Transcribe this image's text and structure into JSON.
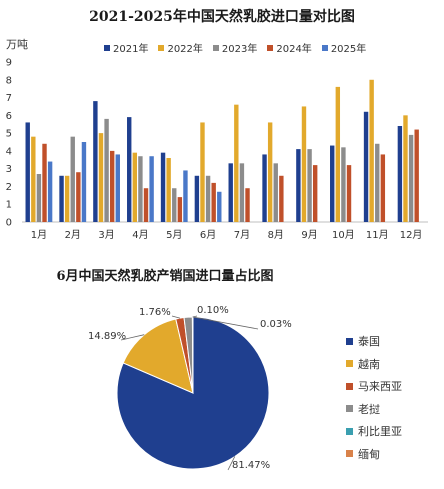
{
  "bar_title": "2021-2025年中国天然乳胶进口量对比图",
  "bar_unit": "万吨",
  "pie_title": "6月中国天然乳胶产销国进口量占比图",
  "chart_data": [
    {
      "type": "bar",
      "title": "2021-2025年中国天然乳胶进口量对比图",
      "ylabel": "万吨",
      "ylim": [
        0,
        9
      ],
      "yticks": [
        0,
        1,
        2,
        3,
        4,
        5,
        6,
        7,
        8,
        9
      ],
      "grid": false,
      "legend": "top",
      "categories": [
        "1月",
        "2月",
        "3月",
        "4月",
        "5月",
        "6月",
        "7月",
        "8月",
        "9月",
        "10月",
        "11月",
        "12月"
      ],
      "series": [
        {
          "name": "2021年",
          "color": "#1f3f8f",
          "values": [
            5.6,
            2.6,
            6.8,
            5.9,
            3.9,
            2.6,
            3.3,
            3.8,
            4.1,
            4.3,
            6.2,
            5.4
          ]
        },
        {
          "name": "2022年",
          "color": "#e2a92c",
          "values": [
            4.8,
            2.6,
            5.0,
            3.9,
            3.6,
            5.6,
            6.6,
            5.6,
            6.5,
            7.6,
            8.0,
            6.0
          ]
        },
        {
          "name": "2023年",
          "color": "#8c8c8c",
          "values": [
            2.7,
            4.8,
            5.8,
            3.7,
            1.9,
            2.6,
            3.3,
            3.3,
            4.1,
            4.2,
            4.4,
            4.9
          ]
        },
        {
          "name": "2024年",
          "color": "#c0502a",
          "values": [
            4.4,
            2.8,
            4.0,
            1.9,
            1.4,
            2.2,
            1.9,
            2.6,
            3.2,
            3.2,
            3.8,
            5.2
          ]
        },
        {
          "name": "2025年",
          "color": "#4a78c8",
          "values": [
            3.4,
            4.5,
            3.8,
            3.7,
            2.9,
            1.7,
            null,
            null,
            null,
            null,
            null,
            null
          ]
        }
      ]
    },
    {
      "type": "pie",
      "title": "6月中国天然乳胶产销国进口量占比图",
      "legend": "right",
      "labels": [
        "泰国",
        "越南",
        "马来西亚",
        "老挝",
        "利比里亚",
        "缅甸"
      ],
      "values": [
        81.47,
        14.89,
        1.76,
        1.75,
        0.1,
        0.03
      ],
      "value_labels": [
        "81.47%",
        "14.89%",
        "1.76%",
        "",
        "0.10%",
        "0.03%"
      ],
      "colors": [
        "#1f3f8f",
        "#e2a92c",
        "#c0502a",
        "#8c8c8c",
        "#3a9fb0",
        "#d9824a"
      ]
    }
  ]
}
